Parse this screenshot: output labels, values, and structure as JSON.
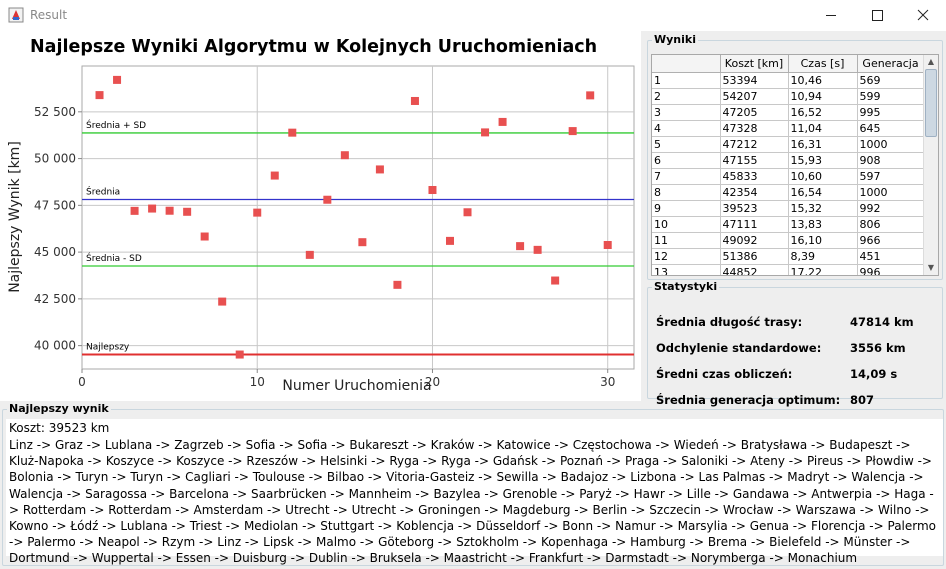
{
  "window": {
    "title": "Result"
  },
  "chart_data": {
    "type": "scatter",
    "title": "Najlepsze Wyniki Algorytmu w Kolejnych Uruchomieniach",
    "xlabel": "Numer Uruchomienia",
    "ylabel": "Najlepszy Wynik [km]",
    "xlim": [
      0,
      31.5
    ],
    "ylim": [
      38750,
      54950
    ],
    "xticks": [
      0,
      10,
      20,
      30
    ],
    "yticks": [
      40000,
      42500,
      45000,
      47500,
      50000,
      52500
    ],
    "ytick_labels": [
      "40 000",
      "42 500",
      "45 000",
      "47 500",
      "50 000",
      "52 500"
    ],
    "grid": true,
    "x": [
      1,
      2,
      3,
      4,
      5,
      6,
      7,
      8,
      9,
      10,
      11,
      12,
      13,
      14,
      15,
      16,
      17,
      18,
      19,
      20,
      21,
      22,
      23,
      24,
      25,
      26,
      27,
      28,
      29,
      30
    ],
    "values": [
      53394,
      54207,
      47205,
      47328,
      47212,
      47155,
      45833,
      42354,
      39523,
      47111,
      49092,
      51386,
      44852,
      47800,
      50180,
      45530,
      49420,
      43250,
      53080,
      48320,
      45600,
      47130,
      51400,
      51960,
      45320,
      45120,
      43480,
      51470,
      53380,
      45380
    ],
    "series_color": "#e85050",
    "reference_lines": [
      {
        "label": "Średnia + SD",
        "value": 51370,
        "color": "#33cc33"
      },
      {
        "label": "Średnia",
        "value": 47814,
        "color": "#3333cc"
      },
      {
        "label": "Średnia - SD",
        "value": 44258,
        "color": "#33cc33"
      },
      {
        "label": "Najlepszy",
        "value": 39523,
        "color": "#e03030"
      }
    ]
  },
  "results": {
    "legend": "Wyniki",
    "columns": [
      "",
      "Koszt [km]",
      "Czas [s]",
      "Generacja"
    ],
    "rows": [
      [
        "1",
        "53394",
        "10,46",
        "569"
      ],
      [
        "2",
        "54207",
        "10,94",
        "599"
      ],
      [
        "3",
        "47205",
        "16,52",
        "995"
      ],
      [
        "4",
        "47328",
        "11,04",
        "645"
      ],
      [
        "5",
        "47212",
        "16,31",
        "1000"
      ],
      [
        "6",
        "47155",
        "15,93",
        "908"
      ],
      [
        "7",
        "45833",
        "10,60",
        "597"
      ],
      [
        "8",
        "42354",
        "16,54",
        "1000"
      ],
      [
        "9",
        "39523",
        "15,32",
        "992"
      ],
      [
        "10",
        "47111",
        "13,83",
        "806"
      ],
      [
        "11",
        "49092",
        "16,10",
        "966"
      ],
      [
        "12",
        "51386",
        "8,39",
        "451"
      ],
      [
        "13",
        "44852",
        "17,22",
        "996"
      ]
    ]
  },
  "stats": {
    "legend": "Statystyki",
    "items": [
      {
        "label": "Średnia długość trasy:",
        "value": "47814 km"
      },
      {
        "label": "Odchylenie standardowe:",
        "value": "3556 km"
      },
      {
        "label": "Średni czas obliczeń:",
        "value": "14,09 s"
      },
      {
        "label": "Średnia generacja optimum:",
        "value": "807"
      }
    ]
  },
  "best": {
    "legend": "Najlepszy wynik",
    "cost": "Koszt: 39523 km",
    "route": "Linz -> Graz -> Lublana -> Zagrzeb -> Sofia -> Sofia -> Bukareszt -> Kraków -> Katowice -> Częstochowa -> Wiedeń -> Bratysława -> Budapeszt -> Kluż-Napoka -> Koszyce -> Koszyce -> Rzeszów -> Helsinki -> Ryga -> Ryga -> Gdańsk -> Poznań -> Praga -> Saloniki -> Ateny -> Pireus -> Płowdiw -> Bolonia -> Turyn -> Turyn -> Cagliari -> Toulouse -> Bilbao -> Vitoria-Gasteiz -> Sewilla -> Badajoz -> Lizbona -> Las Palmas -> Madryt -> Walencja -> Walencja -> Saragossa -> Barcelona -> Saarbrücken -> Mannheim -> Bazylea -> Grenoble -> Paryż -> Hawr -> Lille -> Gandawa -> Antwerpia -> Haga -> Rotterdam -> Rotterdam -> Amsterdam -> Utrecht -> Utrecht -> Groningen -> Magdeburg -> Berlin -> Szczecin -> Wrocław -> Warszawa -> Wilno -> Kowno -> Łódź -> Lublana -> Triest -> Mediolan -> Stuttgart -> Koblencja -> Düsseldorf -> Bonn -> Namur -> Marsylia -> Genua -> Florencja -> Palermo -> Palermo -> Neapol -> Rzym -> Linz -> Lipsk -> Malmo -> Göteborg -> Sztokholm -> Kopenhaga -> Hamburg -> Brema -> Bielefeld -> Münster -> Dortmund -> Wuppertal -> Essen -> Duisburg -> Dublin -> Bruksela -> Maastricht -> Frankfurt -> Darmstadt -> Norymberga -> Monachium"
  }
}
